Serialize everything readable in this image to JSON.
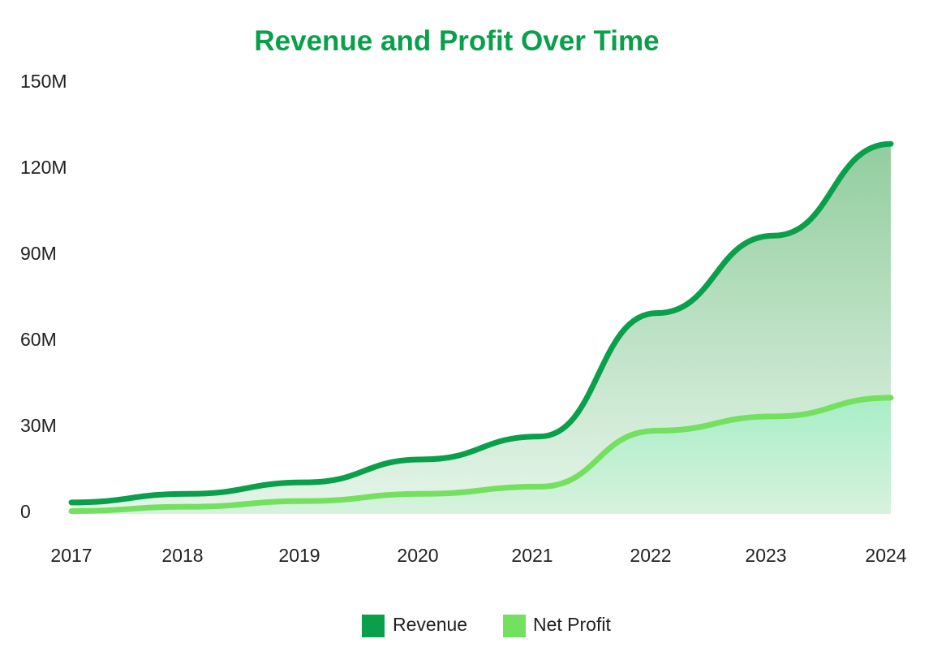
{
  "chart_data": {
    "type": "area",
    "title": "Revenue and Profit Over Time",
    "xlabel": "",
    "ylabel": "",
    "x": [
      "2017",
      "2018",
      "2019",
      "2020",
      "2021",
      "2022",
      "2023",
      "2024"
    ],
    "ylim": [
      0,
      150
    ],
    "y_ticks": [
      0,
      30,
      60,
      90,
      120,
      150
    ],
    "y_tick_labels": [
      "0",
      "30M",
      "60M",
      "90M",
      "120M",
      "150M"
    ],
    "series": [
      {
        "name": "Revenue",
        "values": [
          4,
          7,
          11,
          19,
          27,
          70,
          97,
          129
        ],
        "color": "#0a9f4a"
      },
      {
        "name": "Net Profit",
        "values": [
          1,
          2.5,
          4.5,
          7,
          9.5,
          29,
          34,
          40.5
        ],
        "color": "#74e060"
      }
    ],
    "grid": false,
    "legend_position": "bottom",
    "colors": {
      "title": "#0a9f4a",
      "revenue_fill_top": "#92cd9e",
      "revenue_fill_bottom": "#e6f5e9",
      "profit_fill_top": "#a7eec6",
      "profit_fill_bottom": "#d7f2dd"
    }
  }
}
